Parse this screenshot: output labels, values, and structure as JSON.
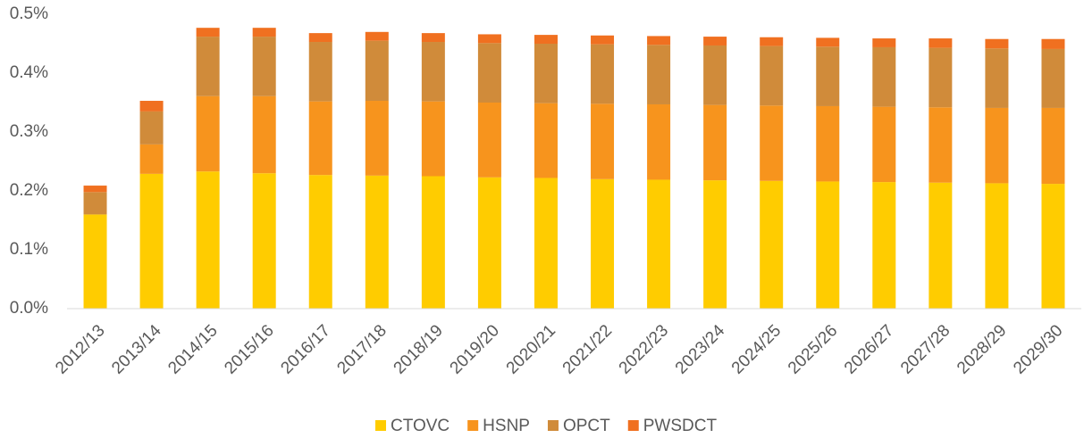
{
  "chart_data": {
    "type": "stacked_bar",
    "categories": [
      "2012/13",
      "2013/14",
      "2014/15",
      "2015/16",
      "2016/17",
      "2017/18",
      "2018/19",
      "2019/20",
      "2020/21",
      "2021/22",
      "2022/23",
      "2023/24",
      "2024/25",
      "2025/26",
      "2026/27",
      "2027/28",
      "2028/29",
      "2029/30"
    ],
    "series": [
      {
        "name": "CTOVC",
        "color": "#FFCC00",
        "values": [
          0.16,
          0.229,
          0.233,
          0.23,
          0.227,
          0.226,
          0.225,
          0.223,
          0.222,
          0.22,
          0.219,
          0.218,
          0.217,
          0.216,
          0.215,
          0.214,
          0.213,
          0.212
        ]
      },
      {
        "name": "HSNP",
        "color": "#F7941D",
        "values": [
          0,
          0.05,
          0.128,
          0.131,
          0.125,
          0.127,
          0.127,
          0.127,
          0.127,
          0.128,
          0.128,
          0.128,
          0.128,
          0.128,
          0.128,
          0.128,
          0.128,
          0.129
        ]
      },
      {
        "name": "OPCT",
        "color": "#D08B3A",
        "values": [
          0.038,
          0.056,
          0.101,
          0.101,
          0.101,
          0.102,
          0.101,
          0.101,
          0.101,
          0.101,
          0.101,
          0.101,
          0.101,
          0.101,
          0.101,
          0.101,
          0.101,
          0.1
        ]
      },
      {
        "name": "PWSDCT",
        "color": "#F07020",
        "values": [
          0.011,
          0.018,
          0.015,
          0.015,
          0.015,
          0.015,
          0.015,
          0.015,
          0.015,
          0.015,
          0.015,
          0.015,
          0.015,
          0.015,
          0.015,
          0.016,
          0.016,
          0.017
        ]
      }
    ],
    "ylim": [
      0,
      0.5
    ],
    "yticks": [
      {
        "value": 0,
        "label": "0.0%"
      },
      {
        "value": 0.1,
        "label": "0.1%"
      },
      {
        "value": 0.2,
        "label": "0.2%"
      },
      {
        "value": 0.3,
        "label": "0.3%"
      },
      {
        "value": 0.4,
        "label": "0.4%"
      },
      {
        "value": 0.5,
        "label": "0.5%"
      }
    ],
    "legend": "bottom"
  }
}
